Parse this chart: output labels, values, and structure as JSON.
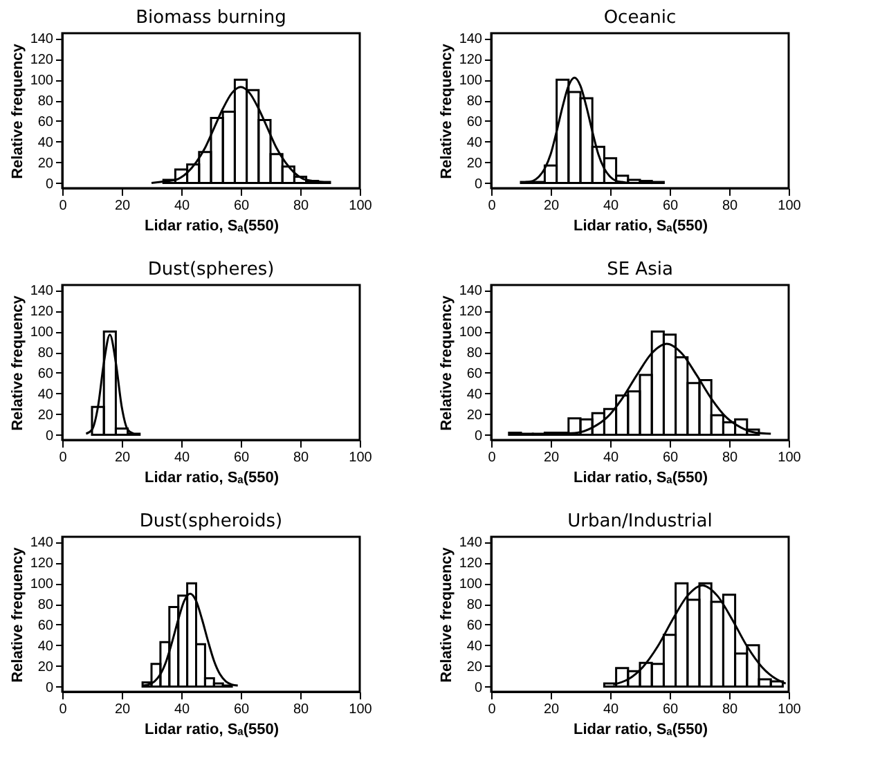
{
  "chart_data": [
    {
      "type": "histogram",
      "title": "Biomass burning",
      "xlabel": "Lidar ratio, Sₐ(550)",
      "ylabel": "Relative frequency",
      "xlim": [
        0,
        100
      ],
      "xticks": [
        0,
        20,
        40,
        60,
        80,
        100
      ],
      "ylim": [
        -5,
        145
      ],
      "yticks": [
        0,
        20,
        40,
        60,
        80,
        100,
        120,
        140
      ],
      "color": "#000000",
      "bins": [
        34,
        38,
        42,
        46,
        50,
        54,
        58,
        62,
        66,
        70,
        74,
        78,
        82,
        86,
        90
      ],
      "values": [
        3,
        13,
        18,
        30,
        63,
        69,
        100,
        90,
        61,
        28,
        16,
        6,
        2,
        1
      ],
      "series": [
        {
          "type": "line",
          "color": "#000000",
          "x": [
            30,
            33,
            36,
            39,
            42,
            45,
            48,
            51,
            54,
            57,
            60,
            63,
            66,
            69,
            72,
            75,
            78,
            81,
            84,
            87,
            90
          ],
          "values": [
            0,
            1,
            2,
            4,
            10,
            20,
            34,
            53,
            72,
            87,
            93,
            87,
            72,
            53,
            34,
            20,
            10,
            4,
            2,
            1,
            0
          ]
        }
      ]
    },
    {
      "type": "histogram",
      "title": "Oceanic",
      "xlabel": "Lidar ratio, Sₐ(550)",
      "ylabel": "Relative frequency",
      "xlim": [
        0,
        100
      ],
      "xticks": [
        0,
        20,
        40,
        60,
        80,
        100
      ],
      "ylim": [
        -5,
        145
      ],
      "yticks": [
        0,
        20,
        40,
        60,
        80,
        100,
        120,
        140
      ],
      "color": "#000000",
      "bins": [
        10,
        14,
        18,
        22,
        26,
        30,
        34,
        38,
        42,
        46,
        50,
        54,
        58
      ],
      "values": [
        1,
        1,
        17,
        100,
        88,
        82,
        35,
        24,
        7,
        3,
        2,
        1
      ],
      "series": [
        {
          "type": "line",
          "color": "#000000",
          "x": [
            10,
            12,
            14,
            16,
            18,
            20,
            22,
            24,
            26,
            28,
            30,
            32,
            34,
            36,
            38,
            40,
            42,
            44,
            46
          ],
          "values": [
            0,
            1,
            2,
            6,
            14,
            28,
            50,
            74,
            94,
            102,
            94,
            74,
            50,
            28,
            14,
            6,
            2,
            1,
            0
          ]
        }
      ]
    },
    {
      "type": "histogram",
      "title": "Dust(spheres)",
      "xlabel": "Lidar ratio, Sₐ(550)",
      "ylabel": "Relative frequency",
      "xlim": [
        0,
        100
      ],
      "xticks": [
        0,
        20,
        40,
        60,
        80,
        100
      ],
      "ylim": [
        -5,
        145
      ],
      "yticks": [
        0,
        20,
        40,
        60,
        80,
        100,
        120,
        140
      ],
      "color": "#000000",
      "bins": [
        10,
        14,
        18,
        22,
        26
      ],
      "values": [
        27,
        100,
        6,
        1
      ],
      "series": [
        {
          "type": "line",
          "color": "#000000",
          "x": [
            8,
            10,
            12,
            14,
            16,
            18,
            20,
            22,
            24
          ],
          "values": [
            1,
            5,
            27,
            70,
            97,
            70,
            27,
            5,
            1
          ]
        }
      ]
    },
    {
      "type": "histogram",
      "title": "SE Asia",
      "xlabel": "Lidar ratio, Sₐ(550)",
      "ylabel": "Relative frequency",
      "xlim": [
        0,
        100
      ],
      "xticks": [
        0,
        20,
        40,
        60,
        80,
        100
      ],
      "ylim": [
        -5,
        145
      ],
      "yticks": [
        0,
        20,
        40,
        60,
        80,
        100,
        120,
        140
      ],
      "color": "#000000",
      "bins": [
        6,
        10,
        14,
        18,
        22,
        26,
        30,
        34,
        38,
        42,
        46,
        50,
        54,
        58,
        62,
        66,
        70,
        74,
        78,
        82,
        86,
        90
      ],
      "values": [
        2,
        1,
        1,
        2,
        2,
        16,
        15,
        21,
        25,
        38,
        42,
        58,
        100,
        97,
        75,
        50,
        53,
        19,
        12,
        15,
        5
      ],
      "series": [
        {
          "type": "line",
          "color": "#000000",
          "x": [
            24,
            29,
            34,
            39,
            44,
            49,
            54,
            59,
            64,
            69,
            74,
            79,
            84,
            89,
            94
          ],
          "values": [
            1,
            2,
            7,
            17,
            35,
            58,
            79,
            88,
            79,
            58,
            35,
            17,
            7,
            2,
            1
          ]
        }
      ]
    },
    {
      "type": "histogram",
      "title": "Dust(spheroids)",
      "xlabel": "Lidar ratio, Sₐ(550)",
      "ylabel": "Relative frequency",
      "xlim": [
        0,
        100
      ],
      "xticks": [
        0,
        20,
        40,
        60,
        80,
        100
      ],
      "ylim": [
        -5,
        145
      ],
      "yticks": [
        0,
        20,
        40,
        60,
        80,
        100,
        120,
        140
      ],
      "color": "#000000",
      "bins": [
        27,
        30,
        33,
        36,
        39,
        42,
        45,
        48,
        51,
        54,
        57
      ],
      "values": [
        4,
        22,
        43,
        77,
        88,
        100,
        41,
        8,
        3,
        1
      ],
      "series": [
        {
          "type": "line",
          "color": "#000000",
          "x": [
            27,
            29,
            31,
            33,
            35,
            37,
            39,
            41,
            43,
            45,
            47,
            49,
            51,
            53,
            55,
            57,
            59
          ],
          "values": [
            1,
            2,
            5,
            12,
            25,
            44,
            65,
            83,
            90,
            83,
            65,
            44,
            25,
            12,
            5,
            2,
            1
          ]
        }
      ]
    },
    {
      "type": "histogram",
      "title": "Urban/Industrial",
      "xlabel": "Lidar ratio, Sₐ(550)",
      "ylabel": "Relative frequency",
      "xlim": [
        0,
        100
      ],
      "xticks": [
        0,
        20,
        40,
        60,
        80,
        100
      ],
      "ylim": [
        -5,
        145
      ],
      "yticks": [
        0,
        20,
        40,
        60,
        80,
        100,
        120,
        140
      ],
      "color": "#000000",
      "bins": [
        38,
        42,
        46,
        50,
        54,
        58,
        62,
        66,
        70,
        74,
        78,
        82,
        86,
        90,
        94,
        98
      ],
      "values": [
        3,
        18,
        15,
        23,
        22,
        50,
        100,
        84,
        100,
        82,
        89,
        32,
        40,
        7,
        5
      ],
      "series": [
        {
          "type": "line",
          "color": "#000000",
          "x": [
            41,
            46,
            51,
            56,
            61,
            66,
            71,
            76,
            81,
            86,
            91,
            96,
            99
          ],
          "values": [
            2,
            7,
            19,
            39,
            65,
            88,
            98,
            88,
            65,
            39,
            19,
            7,
            3
          ]
        }
      ]
    }
  ]
}
